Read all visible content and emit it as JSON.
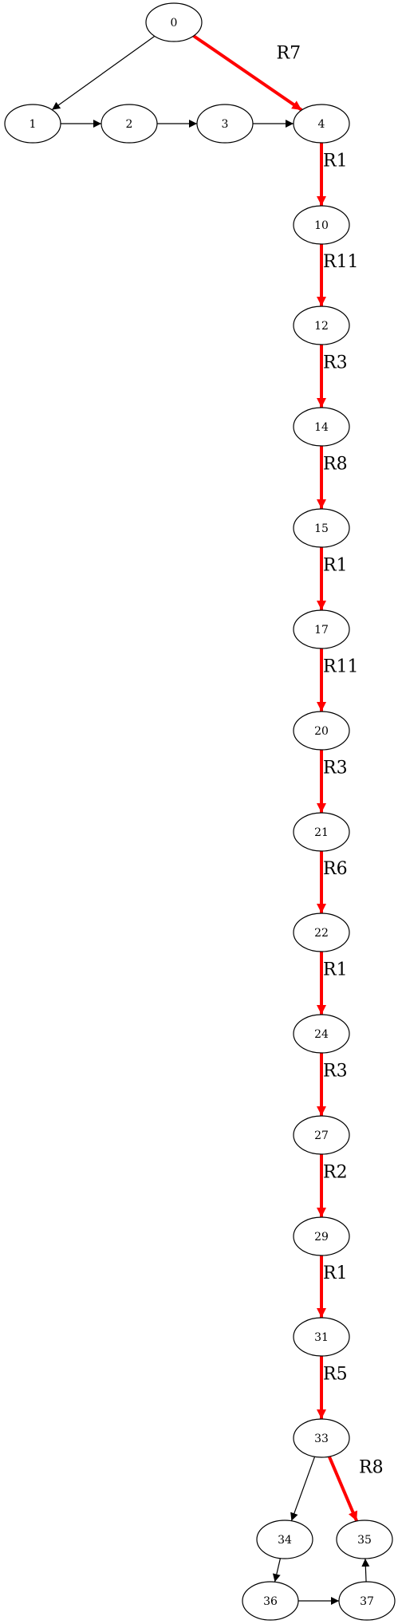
{
  "colors": {
    "node_stroke": "#000000",
    "edge_default": "#000000",
    "edge_highlight": "#ff0000",
    "background": "#ffffff"
  },
  "nodes": [
    {
      "id": "n0",
      "label": "0"
    },
    {
      "id": "n1",
      "label": "1"
    },
    {
      "id": "n2",
      "label": "2"
    },
    {
      "id": "n3",
      "label": "3"
    },
    {
      "id": "n4",
      "label": "4"
    },
    {
      "id": "n10",
      "label": "10"
    },
    {
      "id": "n12",
      "label": "12"
    },
    {
      "id": "n14",
      "label": "14"
    },
    {
      "id": "n15",
      "label": "15"
    },
    {
      "id": "n17",
      "label": "17"
    },
    {
      "id": "n20",
      "label": "20"
    },
    {
      "id": "n21",
      "label": "21"
    },
    {
      "id": "n22",
      "label": "22"
    },
    {
      "id": "n24",
      "label": "24"
    },
    {
      "id": "n27",
      "label": "27"
    },
    {
      "id": "n29",
      "label": "29"
    },
    {
      "id": "n31",
      "label": "31"
    },
    {
      "id": "n33",
      "label": "33"
    },
    {
      "id": "n34",
      "label": "34"
    },
    {
      "id": "n35",
      "label": "35"
    },
    {
      "id": "n36",
      "label": "36"
    },
    {
      "id": "n37",
      "label": "37"
    }
  ],
  "edges": [
    {
      "from": "n0",
      "to": "n1",
      "label": "",
      "highlight": false
    },
    {
      "from": "n0",
      "to": "n4",
      "label": "R7",
      "highlight": true
    },
    {
      "from": "n1",
      "to": "n2",
      "label": "",
      "highlight": false
    },
    {
      "from": "n2",
      "to": "n3",
      "label": "",
      "highlight": false
    },
    {
      "from": "n3",
      "to": "n4",
      "label": "",
      "highlight": false
    },
    {
      "from": "n4",
      "to": "n10",
      "label": "R1",
      "highlight": true
    },
    {
      "from": "n10",
      "to": "n12",
      "label": "R11",
      "highlight": true
    },
    {
      "from": "n12",
      "to": "n14",
      "label": "R3",
      "highlight": true
    },
    {
      "from": "n14",
      "to": "n15",
      "label": "R8",
      "highlight": true
    },
    {
      "from": "n15",
      "to": "n17",
      "label": "R1",
      "highlight": true
    },
    {
      "from": "n17",
      "to": "n20",
      "label": "R11",
      "highlight": true
    },
    {
      "from": "n20",
      "to": "n21",
      "label": "R3",
      "highlight": true
    },
    {
      "from": "n21",
      "to": "n22",
      "label": "R6",
      "highlight": true
    },
    {
      "from": "n22",
      "to": "n24",
      "label": "R1",
      "highlight": true
    },
    {
      "from": "n24",
      "to": "n27",
      "label": "R3",
      "highlight": true
    },
    {
      "from": "n27",
      "to": "n29",
      "label": "R2",
      "highlight": true
    },
    {
      "from": "n29",
      "to": "n31",
      "label": "R1",
      "highlight": true
    },
    {
      "from": "n31",
      "to": "n33",
      "label": "R5",
      "highlight": true
    },
    {
      "from": "n33",
      "to": "n34",
      "label": "",
      "highlight": false
    },
    {
      "from": "n33",
      "to": "n35",
      "label": "R8",
      "highlight": true
    },
    {
      "from": "n34",
      "to": "n36",
      "label": "",
      "highlight": false
    },
    {
      "from": "n36",
      "to": "n37",
      "label": "",
      "highlight": false
    },
    {
      "from": "n37",
      "to": "n35",
      "label": "",
      "highlight": false
    }
  ]
}
